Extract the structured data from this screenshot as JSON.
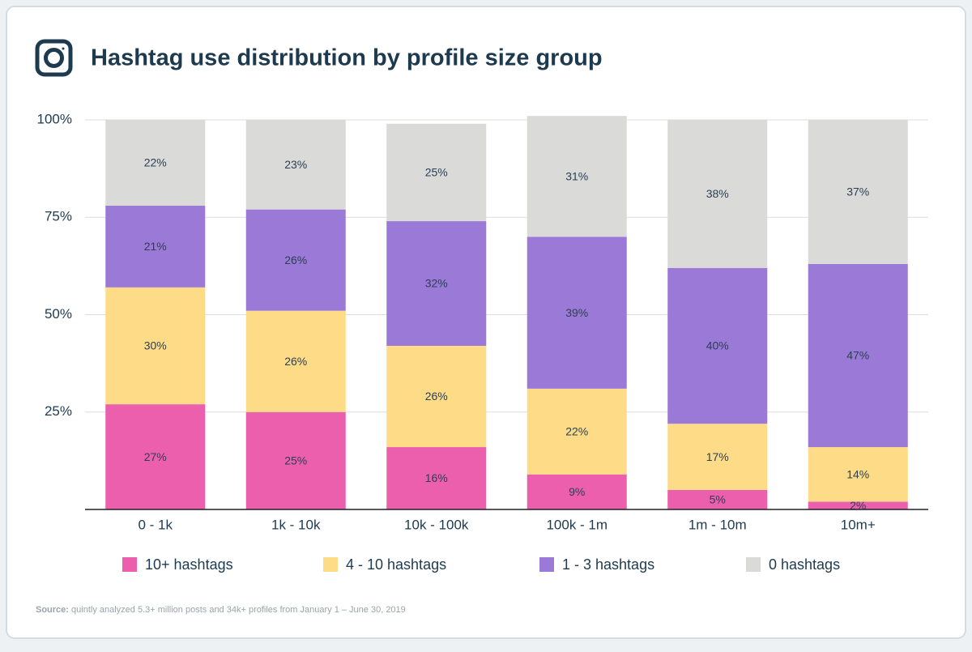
{
  "chart_data": {
    "type": "stacked-bar",
    "title": "Hashtag use distribution by profile size group",
    "categories": [
      "0 - 1k",
      "1k - 10k",
      "10k - 100k",
      "100k - 1m",
      "1m - 10m",
      "10m+"
    ],
    "series": [
      {
        "name": "10+ hashtags",
        "color": "#ec5fad",
        "values": [
          27,
          25,
          16,
          9,
          5,
          2
        ],
        "value_labels": [
          "27%",
          "25%",
          "16%",
          "9%",
          "5%",
          "2%"
        ]
      },
      {
        "name": "4 - 10 hashtags",
        "color": "#fedc87",
        "values": [
          30,
          26,
          26,
          22,
          17,
          14
        ],
        "value_labels": [
          "30%",
          "26%",
          "26%",
          "22%",
          "17%",
          "14%"
        ]
      },
      {
        "name": "1 - 3 hashtags",
        "color": "#9b79d6",
        "values": [
          21,
          26,
          32,
          39,
          40,
          47
        ],
        "value_labels": [
          "21%",
          "26%",
          "32%",
          "39%",
          "40%",
          "47%"
        ]
      },
      {
        "name": "0 hashtags",
        "color": "#dadad8",
        "values": [
          22,
          23,
          25,
          31,
          38,
          37
        ],
        "value_labels": [
          "22%",
          "23%",
          "25%",
          "31%",
          "38%",
          "37%"
        ]
      }
    ],
    "ylim": [
      0,
      100
    ],
    "yticks": [
      {
        "value": 0,
        "label": ""
      },
      {
        "value": 25,
        "label": "25%"
      },
      {
        "value": 50,
        "label": "50%"
      },
      {
        "value": 75,
        "label": "75%"
      },
      {
        "value": 100,
        "label": "100%"
      }
    ],
    "grid": true,
    "source_label": "Source:",
    "source_text": "quintly analyzed 5.3+ million posts and 34k+ profiles from January 1 – June 30, 2019"
  }
}
